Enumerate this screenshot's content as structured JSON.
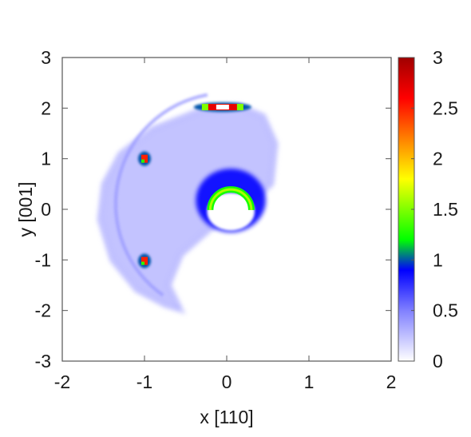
{
  "chart_data": {
    "type": "heatmap",
    "title": "",
    "xlabel": "x [110]",
    "ylabel": "y [001]",
    "xlim": [
      -2,
      2
    ],
    "ylim": [
      -3,
      3
    ],
    "x_ticks": [
      "-2",
      "-1",
      "0",
      "1",
      "2"
    ],
    "y_ticks": [
      "3",
      "2",
      "1",
      "0",
      "-1",
      "-2",
      "-3"
    ],
    "colorbar": {
      "range": [
        0,
        3
      ],
      "ticks": [
        "3",
        "2.5",
        "2",
        "1.5",
        "1",
        "0.5",
        "0"
      ],
      "colormap": [
        {
          "value": 0.0,
          "color": "#ffffff"
        },
        {
          "value": 0.5,
          "color": "#8080ff"
        },
        {
          "value": 0.9,
          "color": "#0000ff"
        },
        {
          "value": 1.2,
          "color": "#00ff00"
        },
        {
          "value": 1.8,
          "color": "#ffff00"
        },
        {
          "value": 2.2,
          "color": "#ff8000"
        },
        {
          "value": 2.6,
          "color": "#ff0000"
        },
        {
          "value": 3.0,
          "color": "#a00000"
        }
      ]
    },
    "features": [
      {
        "name": "crescent-body",
        "shape": "crescent",
        "outer_boundary": [
          [
            0.15,
            2.05
          ],
          [
            0.45,
            1.85
          ],
          [
            0.6,
            1.3
          ],
          [
            0.55,
            0.5
          ],
          [
            0.25,
            0.05
          ],
          [
            -0.2,
            -0.4
          ],
          [
            -0.55,
            -0.9
          ],
          [
            -0.7,
            -1.5
          ],
          [
            -0.55,
            -2.0
          ],
          [
            -0.75,
            -1.9
          ],
          [
            -1.1,
            -1.6
          ],
          [
            -1.4,
            -1.0
          ],
          [
            -1.55,
            -0.2
          ],
          [
            -1.5,
            0.5
          ],
          [
            -1.3,
            1.1
          ],
          [
            -0.9,
            1.6
          ],
          [
            -0.35,
            1.95
          ]
        ],
        "value": 0.25
      },
      {
        "name": "inner-arc",
        "shape": "arc",
        "center": [
          0.0,
          0.1
        ],
        "radius": 1.35,
        "value": 0.4
      },
      {
        "name": "hotspot-top",
        "center": [
          -0.05,
          2.02
        ],
        "value": 3.0
      },
      {
        "name": "hotspot-left-upper",
        "center": [
          -1.0,
          1.0
        ],
        "value": 2.5
      },
      {
        "name": "hotspot-left-lower",
        "center": [
          -1.0,
          -1.02
        ],
        "value": 2.5
      },
      {
        "name": "ring-center",
        "shape": "half-ring",
        "center": [
          0.05,
          0.05
        ],
        "radius": 0.25,
        "value": 1.6
      }
    ]
  }
}
